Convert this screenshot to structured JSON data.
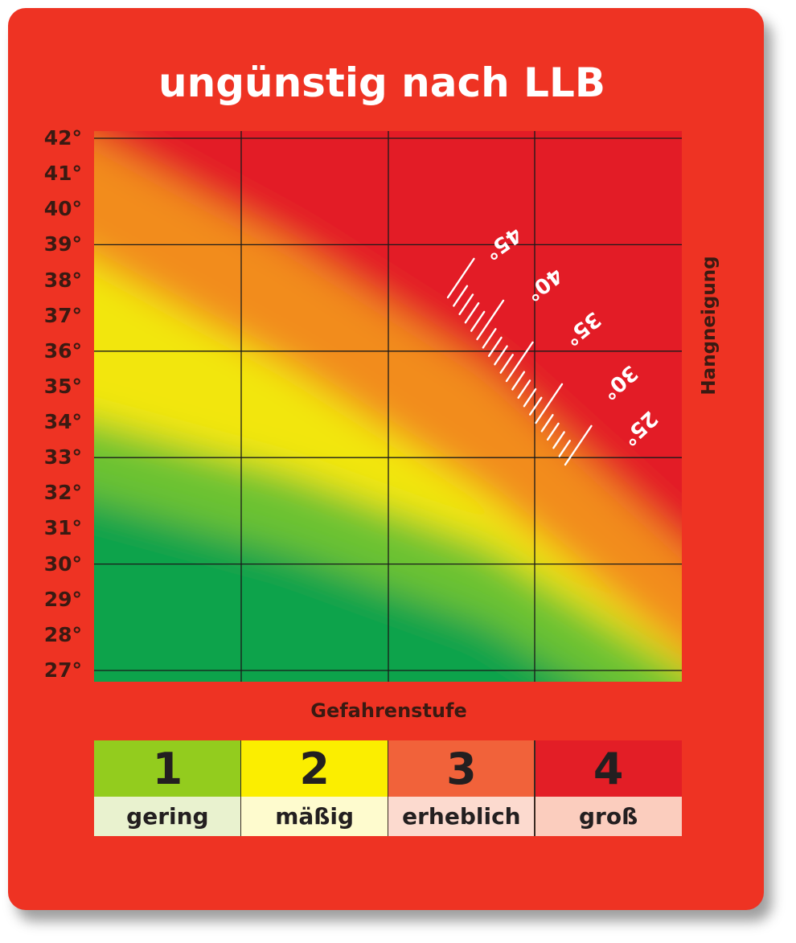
{
  "title": "ungünstig nach LLB",
  "colors": {
    "card": "#ee3323",
    "green": "#0ca34b",
    "light_green": "#6cc232",
    "yellow": "#f2e60c",
    "orange": "#f28c1c",
    "red": "#e31e26"
  },
  "chart_data": {
    "type": "heatmap",
    "title": "ungünstig nach LLB",
    "xlabel": "Gefahrenstufe",
    "ylabel": "Hangneigung",
    "x_categories": [
      "1",
      "2",
      "3",
      "4"
    ],
    "y_ticks": [
      "42°",
      "41°",
      "40°",
      "39°",
      "38°",
      "37°",
      "36°",
      "35°",
      "34°",
      "33°",
      "32°",
      "31°",
      "30°",
      "29°",
      "28°",
      "27°"
    ],
    "ylim": [
      27,
      42
    ],
    "grid": true,
    "color_scale": [
      "green",
      "light green",
      "yellow",
      "orange",
      "red"
    ],
    "boundaries_note_values": {
      "green_to_yellow_slope_deg_at_level": [
        [
          1,
          34.0
        ],
        [
          2,
          32.5
        ],
        [
          3,
          30.5
        ],
        [
          4,
          27.0
        ]
      ],
      "yellow_to_orange_slope_deg_at_level": [
        [
          1,
          38.5
        ],
        [
          2,
          35.5
        ],
        [
          3,
          32.0
        ],
        [
          4,
          27.5
        ]
      ],
      "orange_to_red_slope_deg_at_level": [
        [
          1,
          42.0
        ],
        [
          2,
          39.0
        ],
        [
          3,
          35.5
        ],
        [
          4,
          30.5
        ]
      ]
    },
    "scale_overlay": {
      "labels": [
        "45°",
        "40°",
        "35°",
        "30°",
        "25°"
      ]
    }
  },
  "legend": {
    "items": [
      {
        "number": "1",
        "label": "gering",
        "top_color": "#93cc1e",
        "bottom_color": "#e9f2cf"
      },
      {
        "number": "2",
        "label": "mäßig",
        "top_color": "#fbee00",
        "bottom_color": "#fefbce"
      },
      {
        "number": "3",
        "label": "erheblich",
        "top_color": "#f1623a",
        "bottom_color": "#fcdacf"
      },
      {
        "number": "4",
        "label": "groß",
        "top_color": "#e31e26",
        "bottom_color": "#fbcdbe"
      }
    ]
  }
}
